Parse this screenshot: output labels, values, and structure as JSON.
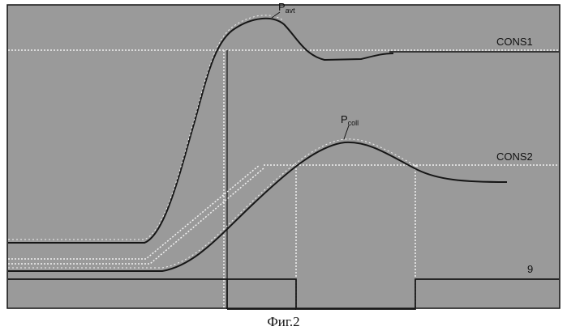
{
  "figure": {
    "caption": "Фиг.2",
    "colors": {
      "background": "#9a9a9a",
      "curve": "#161616",
      "dotted": "#f2f2f2",
      "frame": "#111111"
    },
    "labels": {
      "p_avt_main": "P",
      "p_avt_sub": "avt",
      "p_coll_main": "P",
      "p_coll_sub": "coll",
      "cons1": "CONS1",
      "cons2": "CONS2",
      "signal": "9"
    }
  }
}
